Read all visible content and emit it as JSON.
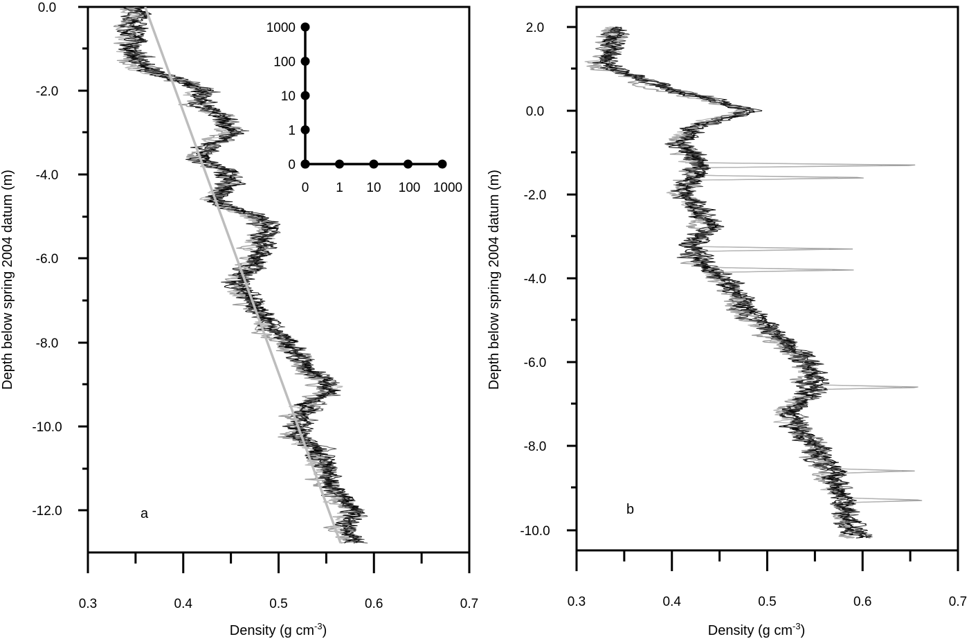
{
  "chart_data": [
    {
      "type": "line",
      "panel_label": "a",
      "xlabel": "Density (g cm",
      "xlabel_sup": "-3",
      "xlabel_end": ")",
      "ylabel": "Depth below spring 2004 datum (m)",
      "xlim": [
        0.3,
        0.7
      ],
      "ylim": [
        -13.0,
        0.0
      ],
      "x_ticks": [
        "0.3",
        "0.4",
        "0.5",
        "0.6",
        "0.7"
      ],
      "y_ticks": [
        "0.0",
        "-2.0",
        "-4.0",
        "-6.0",
        "-8.0",
        "-10.0",
        "-12.0"
      ],
      "grid": false,
      "profile": {
        "depth": [
          0.0,
          -0.5,
          -1.0,
          -1.5,
          -1.8,
          -2.0,
          -2.3,
          -2.6,
          -3.0,
          -3.3,
          -3.6,
          -3.9,
          -4.2,
          -4.6,
          -5.0,
          -5.3,
          -5.6,
          -6.0,
          -6.3,
          -6.6,
          -7.0,
          -7.4,
          -7.8,
          -8.2,
          -8.5,
          -8.9,
          -9.2,
          -9.5,
          -9.8,
          -10.2,
          -10.6,
          -11.0,
          -11.5,
          -12.0,
          -12.4,
          -12.8
        ],
        "density": [
          0.355,
          0.35,
          0.345,
          0.36,
          0.4,
          0.42,
          0.415,
          0.44,
          0.45,
          0.43,
          0.415,
          0.445,
          0.45,
          0.43,
          0.47,
          0.49,
          0.48,
          0.475,
          0.47,
          0.455,
          0.47,
          0.485,
          0.5,
          0.515,
          0.525,
          0.545,
          0.555,
          0.53,
          0.525,
          0.52,
          0.54,
          0.545,
          0.555,
          0.575,
          0.57,
          0.58
        ]
      },
      "trend_line": {
        "x": [
          0.36,
          0.565
        ],
        "y": [
          0.0,
          -12.8
        ]
      },
      "inset": {
        "x_ticks": [
          "0",
          "1",
          "10",
          "100",
          "1000"
        ],
        "y_ticks": [
          "0",
          "1",
          "10",
          "100",
          "1000"
        ],
        "horizontal_points": [
          "0",
          "1",
          "10",
          "100",
          "1000"
        ],
        "vertical_points": [
          "0",
          "1",
          "10",
          "100",
          "1000"
        ]
      }
    },
    {
      "type": "line",
      "panel_label": "b",
      "xlabel": "Density (g cm",
      "xlabel_sup": "-3",
      "xlabel_end": ")",
      "ylabel": "Depth below spring 2004 datum (m)",
      "xlim": [
        0.3,
        0.7
      ],
      "ylim": [
        -10.5,
        2.5
      ],
      "x_ticks": [
        "0.3",
        "0.4",
        "0.5",
        "0.6",
        "0.7"
      ],
      "y_ticks": [
        "2.0",
        "0.0",
        "-2.0",
        "-4.0",
        "-6.0",
        "-8.0",
        "-10.0"
      ],
      "grid": false,
      "profile": {
        "depth": [
          2.0,
          1.7,
          1.4,
          1.1,
          0.8,
          0.5,
          0.2,
          0.0,
          -0.4,
          -0.8,
          -1.2,
          -1.6,
          -2.0,
          -2.4,
          -2.8,
          -3.2,
          -3.6,
          -4.0,
          -4.4,
          -4.8,
          -5.2,
          -5.6,
          -6.0,
          -6.4,
          -6.8,
          -7.2,
          -7.6,
          -8.0,
          -8.4,
          -8.8,
          -9.2,
          -9.6,
          -10.0,
          -10.2
        ],
        "density": [
          0.345,
          0.34,
          0.335,
          0.33,
          0.36,
          0.4,
          0.45,
          0.48,
          0.42,
          0.41,
          0.43,
          0.42,
          0.41,
          0.43,
          0.44,
          0.42,
          0.43,
          0.45,
          0.47,
          0.48,
          0.5,
          0.52,
          0.54,
          0.55,
          0.54,
          0.52,
          0.53,
          0.55,
          0.56,
          0.57,
          0.58,
          0.58,
          0.59,
          0.595
        ]
      },
      "spikes": [
        {
          "depth": -1.3,
          "density": 0.68
        },
        {
          "depth": -1.6,
          "density": 0.62
        },
        {
          "depth": -3.3,
          "density": 0.59
        },
        {
          "depth": -3.8,
          "density": 0.595
        },
        {
          "depth": -6.6,
          "density": 0.67
        },
        {
          "depth": -8.6,
          "density": 0.655
        },
        {
          "depth": -9.3,
          "density": 0.67
        }
      ]
    }
  ]
}
